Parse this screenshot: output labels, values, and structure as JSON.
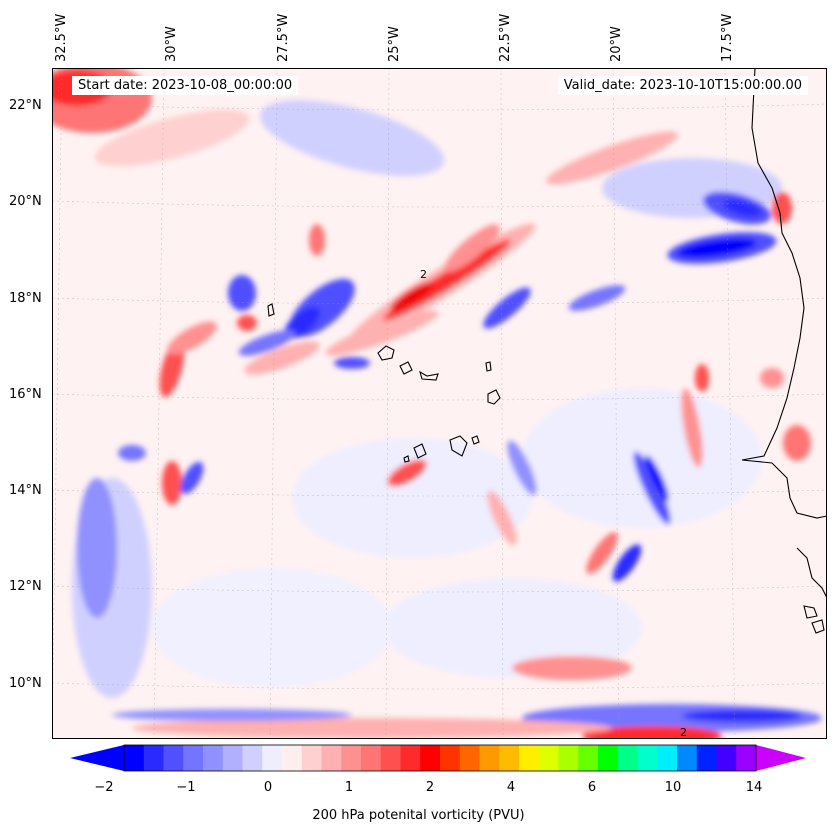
{
  "map": {
    "start_label": "Start date: 2023-10-08_00:00:00",
    "valid_label": "Valid_date: 2023-10-10T15:00:00.00",
    "longitude_labels": [
      "32.5°W",
      "30°W",
      "27.5°W",
      "25°W",
      "22.5°W",
      "20°W",
      "17.5°W"
    ],
    "latitude_labels": [
      "22°N",
      "20°N",
      "18°N",
      "16°N",
      "14°N",
      "12°N",
      "10°N"
    ],
    "contour_label": "2",
    "coastline_color": "#000000"
  },
  "colorbar": {
    "title": "200 hPa potenital vorticity (PVU)",
    "tick_labels": [
      "−2",
      "−1",
      "0",
      "1",
      "2",
      "4",
      "6",
      "10",
      "14"
    ],
    "colors": [
      "#0000ff",
      "#2a2aff",
      "#5050ff",
      "#7474ff",
      "#9090ff",
      "#b0b0ff",
      "#d0d0ff",
      "#eeeeff",
      "#ffeeee",
      "#ffd0d0",
      "#ffb0b0",
      "#ff9090",
      "#ff7474",
      "#ff5050",
      "#ff2a2a",
      "#ff0000",
      "#ff3300",
      "#ff6600",
      "#ff9900",
      "#ffbb00",
      "#ffee00",
      "#ddff00",
      "#aaff00",
      "#66ff00",
      "#00ff00",
      "#00ff88",
      "#00ffcc",
      "#00eeff",
      "#0088ff",
      "#0022ff",
      "#4400ff",
      "#9900ff"
    ],
    "under_color": "#0000ff",
    "over_color": "#cc00ff"
  }
}
